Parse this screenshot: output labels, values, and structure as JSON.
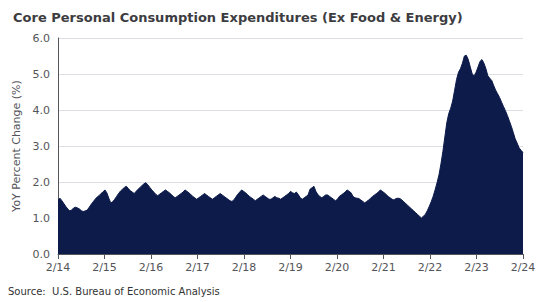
{
  "chart_data": {
    "type": "area",
    "title": "Core Personal Consumption Expenditures (Ex Food & Energy)",
    "ylabel": "YoY Percent Change (%)",
    "source": "Source:  U.S. Bureau of Economic Analysis",
    "color": "#0d1b4b",
    "grid": "y",
    "xlim": [
      0,
      10
    ],
    "xticks": [
      {
        "value": 0,
        "label": "2/14"
      },
      {
        "value": 1,
        "label": "2/15"
      },
      {
        "value": 2,
        "label": "2/16"
      },
      {
        "value": 3,
        "label": "2/17"
      },
      {
        "value": 4,
        "label": "2/18"
      },
      {
        "value": 5,
        "label": "2/19"
      },
      {
        "value": 6,
        "label": "2/20"
      },
      {
        "value": 7,
        "label": "2/21"
      },
      {
        "value": 8,
        "label": "2/22"
      },
      {
        "value": 9,
        "label": "2/23"
      },
      {
        "value": 10,
        "label": "2/24"
      }
    ],
    "ylim": [
      0.0,
      6.0
    ],
    "yticks": [
      {
        "value": 0,
        "label": "0.0"
      },
      {
        "value": 1,
        "label": "1.0"
      },
      {
        "value": 2,
        "label": "2.0"
      },
      {
        "value": 3,
        "label": "3.0"
      },
      {
        "value": 4,
        "label": "4.0"
      },
      {
        "value": 5,
        "label": "5.0"
      },
      {
        "value": 6,
        "label": "6.0"
      }
    ],
    "x": [
      0,
      0.0420168,
      0.0840336,
      0.1260504,
      0.1680672,
      0.210084,
      0.2521008,
      0.2941176,
      0.3361345,
      0.3781513,
      0.4201681,
      0.4621849,
      0.5042017,
      0.5462185,
      0.5882353,
      0.6302521,
      0.6722689,
      0.7142857,
      0.7563025,
      0.7983193,
      0.8403361,
      0.8823529,
      0.9243697,
      0.9663866,
      1.0084034,
      1.0504202,
      1.092437,
      1.1344538,
      1.1764706,
      1.2184874,
      1.2605042,
      1.302521,
      1.3445378,
      1.3865546,
      1.4285714,
      1.4705882,
      1.512605,
      1.5546218,
      1.5966387,
      1.6386555,
      1.6806723,
      1.7226891,
      1.7647059,
      1.8067227,
      1.8487395,
      1.8907563,
      1.9327731,
      1.9747899,
      2.0168067,
      2.0588235,
      2.1008403,
      2.1428571,
      2.1848739,
      2.2268908,
      2.2689076,
      2.3109244,
      2.3529412,
      2.394958,
      2.4369748,
      2.4789916,
      2.5210084,
      2.5630252,
      2.605042,
      2.6470588,
      2.6890756,
      2.7310924,
      2.7731092,
      2.8151261,
      2.8571429,
      2.8991597,
      2.9411765,
      2.9831933,
      3.0252101,
      3.0672269,
      3.1092437,
      3.1512605,
      3.1932773,
      3.2352941,
      3.2773109,
      3.3193277,
      3.3613445,
      3.4033613,
      3.4453782,
      3.487395,
      3.5294118,
      3.5714286,
      3.6134454,
      3.6554622,
      3.697479,
      3.7394958,
      3.7815126,
      3.8235294,
      3.8655462,
      3.907563,
      3.9495798,
      3.9915966,
      4.0336134,
      4.0756303,
      4.1176471,
      4.1596639,
      4.2016807,
      4.2436975,
      4.2857143,
      4.3277311,
      4.3697479,
      4.4117647,
      4.4537815,
      4.4957983,
      4.5378151,
      4.5798319,
      4.6218487,
      4.6638655,
      4.7058824,
      4.7478992,
      4.789916,
      4.8319328,
      4.8739496,
      4.9159664,
      4.9579832,
      5,
      5.0420168,
      5.0840336,
      5.1260504,
      5.1680672,
      5.210084,
      5.2521008,
      5.2941176,
      5.3361345,
      5.3781513,
      5.4201681,
      5.4621849,
      5.5042017,
      5.5462185,
      5.5882353,
      5.6302521,
      5.6722689,
      5.7142857,
      5.7563025,
      5.7983193,
      5.8403361,
      5.8823529,
      5.9243697,
      5.9663866,
      6.0084034,
      6.0504202,
      6.092437,
      6.1344538,
      6.1764706,
      6.2184874,
      6.2605042,
      6.302521,
      6.3445378,
      6.3865546,
      6.4285714,
      6.4705882,
      6.512605,
      6.5546218,
      6.5966387,
      6.6386555,
      6.6806723,
      6.7226891,
      6.7647059,
      6.8067227,
      6.8487395,
      6.8907563,
      6.9327731,
      6.9747899,
      7.0168067,
      7.0588235,
      7.1008403,
      7.1428571,
      7.1848739,
      7.2268908,
      7.2689076,
      7.3109244,
      7.3529412,
      7.394958,
      7.4369748,
      7.4789916,
      7.5210084,
      7.5630252,
      7.605042,
      7.6470588,
      7.6890756,
      7.7310924,
      7.7731092,
      7.8151261,
      7.8571429,
      7.8991597,
      7.9411765,
      7.9831933,
      8.0252101,
      8.0672269,
      8.1092437,
      8.1512605,
      8.1932773,
      8.2352941,
      8.2773109,
      8.3193277,
      8.3613445,
      8.4033613,
      8.4453782,
      8.487395,
      8.5294118,
      8.5714286,
      8.6134454,
      8.6554622,
      8.697479,
      8.7394958,
      8.7815126,
      8.8235294,
      8.8655462,
      8.907563,
      8.9495798,
      8.9915966,
      9.0336134,
      9.0756303,
      9.1176471,
      9.1596639,
      9.2016807,
      9.2436975,
      9.2857143,
      9.3277311,
      9.3697479,
      9.4117647,
      9.4537815,
      9.4957983,
      9.5378151,
      9.5798319,
      9.6218487,
      9.6638655,
      9.7058824,
      9.7478992,
      9.789916,
      9.8319328,
      9.8739496,
      9.9159664,
      9.9579832,
      10
    ],
    "values": [
      1.5,
      1.55,
      1.48,
      1.4,
      1.32,
      1.25,
      1.2,
      1.22,
      1.28,
      1.3,
      1.28,
      1.25,
      1.2,
      1.18,
      1.2,
      1.22,
      1.3,
      1.38,
      1.45,
      1.52,
      1.58,
      1.62,
      1.68,
      1.72,
      1.78,
      1.7,
      1.55,
      1.42,
      1.45,
      1.52,
      1.6,
      1.68,
      1.75,
      1.8,
      1.85,
      1.88,
      1.82,
      1.76,
      1.72,
      1.68,
      1.74,
      1.8,
      1.85,
      1.9,
      1.95,
      1.98,
      1.92,
      1.85,
      1.78,
      1.72,
      1.66,
      1.62,
      1.66,
      1.7,
      1.74,
      1.78,
      1.74,
      1.7,
      1.65,
      1.6,
      1.56,
      1.6,
      1.64,
      1.68,
      1.72,
      1.78,
      1.74,
      1.7,
      1.65,
      1.6,
      1.56,
      1.52,
      1.56,
      1.6,
      1.64,
      1.68,
      1.64,
      1.6,
      1.56,
      1.52,
      1.56,
      1.6,
      1.64,
      1.68,
      1.64,
      1.6,
      1.56,
      1.52,
      1.48,
      1.46,
      1.5,
      1.58,
      1.66,
      1.72,
      1.78,
      1.74,
      1.7,
      1.65,
      1.6,
      1.56,
      1.52,
      1.48,
      1.52,
      1.56,
      1.6,
      1.64,
      1.6,
      1.56,
      1.52,
      1.52,
      1.56,
      1.6,
      1.56,
      1.55,
      1.52,
      1.56,
      1.6,
      1.64,
      1.68,
      1.74,
      1.7,
      1.68,
      1.72,
      1.65,
      1.56,
      1.52,
      1.56,
      1.6,
      1.64,
      1.8,
      1.84,
      1.88,
      1.74,
      1.65,
      1.6,
      1.56,
      1.6,
      1.64,
      1.64,
      1.6,
      1.56,
      1.52,
      1.48,
      1.52,
      1.6,
      1.64,
      1.68,
      1.72,
      1.78,
      1.74,
      1.7,
      1.6,
      1.56,
      1.55,
      1.54,
      1.5,
      1.46,
      1.42,
      1.46,
      1.5,
      1.55,
      1.6,
      1.64,
      1.68,
      1.72,
      1.78,
      1.74,
      1.7,
      1.65,
      1.6,
      1.56,
      1.52,
      1.5,
      1.54,
      1.55,
      1.54,
      1.5,
      1.45,
      1.4,
      1.35,
      1.3,
      1.25,
      1.2,
      1.15,
      1.1,
      1.05,
      1.0,
      1.05,
      1.1,
      1.2,
      1.32,
      1.45,
      1.6,
      1.78,
      1.98,
      2.2,
      2.5,
      2.85,
      3.25,
      3.65,
      3.9,
      4.05,
      4.25,
      4.55,
      4.85,
      5.05,
      5.15,
      5.3,
      5.5,
      5.52,
      5.4,
      5.2,
      5.0,
      4.95,
      5.05,
      5.2,
      5.35,
      5.4,
      5.3,
      5.15,
      4.95,
      4.88,
      4.82,
      4.68,
      4.55,
      4.45,
      4.35,
      4.22,
      4.1,
      3.98,
      3.85,
      3.7,
      3.55,
      3.38,
      3.2,
      3.08,
      2.95,
      2.88,
      2.82
    ]
  }
}
